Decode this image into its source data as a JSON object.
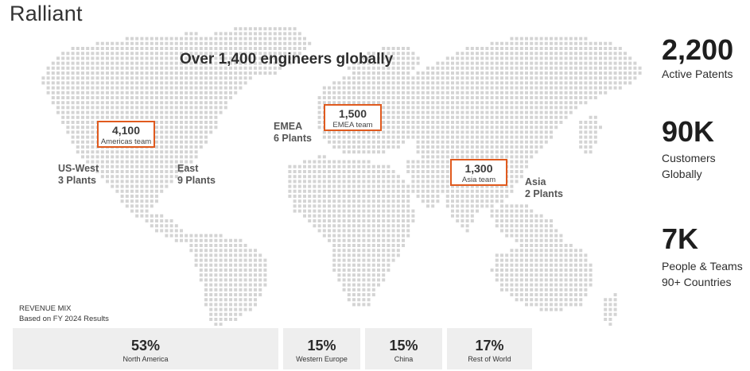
{
  "brand": "Ralliant",
  "headline": "Over 1,400 engineers globally",
  "teams": [
    {
      "value": "4,100",
      "label": "Americas team"
    },
    {
      "value": "1,500",
      "label": "EMEA team"
    },
    {
      "value": "1,300",
      "label": "Asia team"
    }
  ],
  "regions": [
    {
      "name": "US-West",
      "plants": "3 Plants"
    },
    {
      "name": "East",
      "plants": "9 Plants"
    },
    {
      "name": "EMEA",
      "plants": "6 Plants"
    },
    {
      "name": "Asia",
      "plants": "2 Plants"
    }
  ],
  "stats": [
    {
      "value": "2,200",
      "line1": "Active Patents",
      "line2": ""
    },
    {
      "value": "90K",
      "line1": "Customers",
      "line2": "Globally"
    },
    {
      "value": "7K",
      "line1": "People & Teams",
      "line2": "90+ Countries"
    }
  ],
  "revenue": {
    "title": "REVENUE MIX",
    "subtitle": "Based on FY 2024 Results",
    "items": [
      {
        "pct": "53%",
        "label": "North America"
      },
      {
        "pct": "15%",
        "label": "Western Europe"
      },
      {
        "pct": "15%",
        "label": "China"
      },
      {
        "pct": "17%",
        "label": "Rest of World"
      }
    ]
  },
  "colors": {
    "accent": "#e05a1e",
    "map_dot": "#d4d4d4",
    "panel": "#eeeeee"
  }
}
